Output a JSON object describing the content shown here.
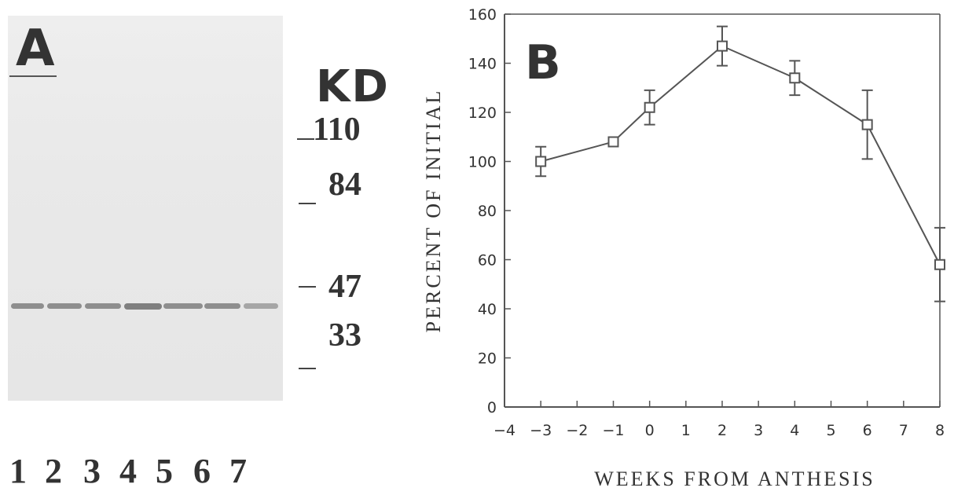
{
  "panel_a": {
    "letter": "A",
    "unit_label": "KD",
    "markers": [
      "110",
      "84",
      "47",
      "33"
    ],
    "lanes": [
      "1",
      "2",
      "3",
      "4",
      "5",
      "6",
      "7"
    ]
  },
  "panel_b": {
    "letter": "B"
  },
  "chart_data": {
    "type": "line",
    "title": "",
    "xlabel": "WEEKS FROM ANTHESIS",
    "ylabel": "PERCENT OF INITIAL",
    "xlim": [
      -4,
      8
    ],
    "ylim": [
      0,
      160
    ],
    "xticks": [
      -4,
      -3,
      -2,
      -1,
      0,
      1,
      2,
      3,
      4,
      5,
      6,
      7,
      8
    ],
    "yticks": [
      0,
      20,
      40,
      60,
      80,
      100,
      120,
      140,
      160
    ],
    "grid": false,
    "marker": "open-square",
    "series": [
      {
        "x": [
          -3,
          -1,
          0,
          2,
          4,
          6,
          8
        ],
        "y": [
          100,
          108,
          122,
          147,
          134,
          115,
          58
        ],
        "error": [
          6,
          1,
          7,
          8,
          7,
          14,
          15
        ]
      }
    ]
  }
}
